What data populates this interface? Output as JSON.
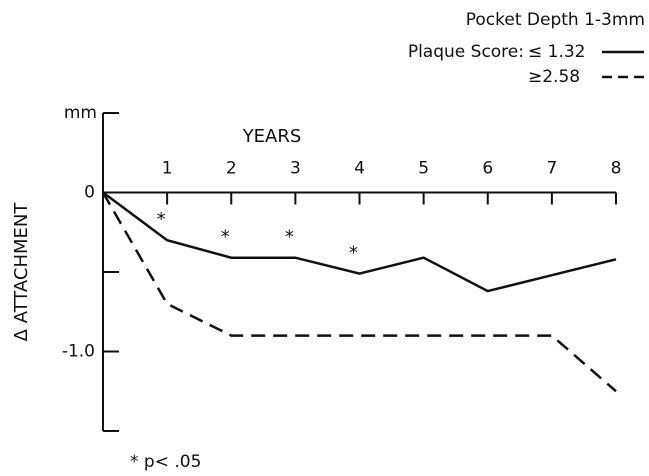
{
  "chart_data": {
    "type": "line",
    "title": "Pocket Depth 1-3mm",
    "legend_title": "Plaque Score:",
    "xlabel": "YEARS",
    "ylabel": "Δ ATTACHMENT",
    "y_unit": "mm",
    "x": [
      0,
      1,
      2,
      3,
      4,
      5,
      6,
      7,
      8
    ],
    "series": [
      {
        "name": "≤ 1.32",
        "color": "#111111",
        "dash": "solid",
        "values": [
          0,
          -0.3,
          -0.41,
          -0.41,
          -0.51,
          -0.41,
          -0.62,
          -0.52,
          -0.42
        ]
      },
      {
        "name": "≥2.58",
        "color": "#111111",
        "dash": "dashed",
        "values": [
          0,
          -0.7,
          -0.9,
          -0.9,
          -0.9,
          -0.9,
          -0.9,
          -0.9,
          -1.25
        ]
      }
    ],
    "xlim": [
      0,
      8
    ],
    "xticks": [
      1,
      2,
      3,
      4,
      5,
      6,
      7,
      8
    ],
    "ylim": [
      -1.5,
      0.5
    ],
    "yticks": [
      0,
      {
        "value": -1,
        "label": "-1.0"
      }
    ],
    "yminor": [
      0.5,
      -0.5,
      -1.5
    ],
    "significance_marker": "*",
    "significant_x": [
      1,
      2,
      3,
      4
    ],
    "footnote": "* p< .05"
  }
}
